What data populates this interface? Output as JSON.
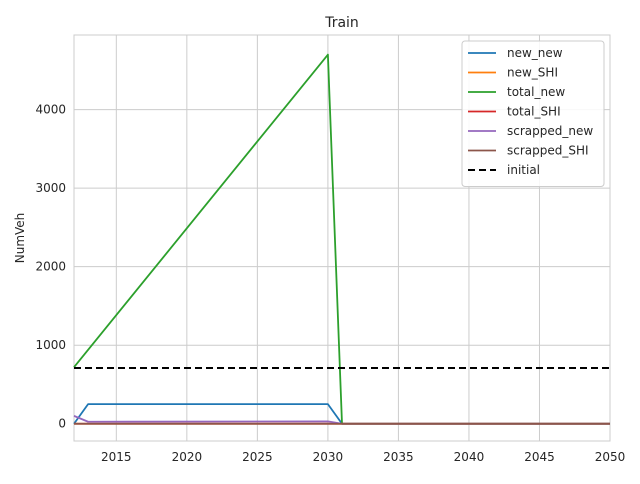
{
  "chart_data": {
    "type": "line",
    "title": "Train",
    "xlabel": "",
    "ylabel": "NumVeh",
    "xlim": [
      2012,
      2050
    ],
    "ylim": [
      -220,
      4950
    ],
    "xticks": [
      2015,
      2020,
      2025,
      2030,
      2035,
      2040,
      2045,
      2050
    ],
    "yticks": [
      0,
      1000,
      2000,
      3000,
      4000
    ],
    "grid": true,
    "legend_position": "top-right",
    "series": [
      {
        "name": "new_new",
        "color": "#1f77b4",
        "style": "solid",
        "points": [
          [
            2012,
            0
          ],
          [
            2013,
            250
          ],
          [
            2030,
            250
          ],
          [
            2031,
            0
          ],
          [
            2050,
            0
          ]
        ]
      },
      {
        "name": "new_SHI",
        "color": "#ff7f0e",
        "style": "solid",
        "points": [
          [
            2012,
            0
          ],
          [
            2050,
            0
          ]
        ]
      },
      {
        "name": "total_new",
        "color": "#2ca02c",
        "style": "solid",
        "points": [
          [
            2012,
            720
          ],
          [
            2030,
            4700
          ],
          [
            2031,
            0
          ],
          [
            2050,
            0
          ]
        ]
      },
      {
        "name": "total_SHI",
        "color": "#d62728",
        "style": "solid",
        "points": [
          [
            2012,
            0
          ],
          [
            2050,
            0
          ]
        ]
      },
      {
        "name": "scrapped_new",
        "color": "#9467bd",
        "style": "solid",
        "points": [
          [
            2012,
            100
          ],
          [
            2013,
            25
          ],
          [
            2030,
            30
          ],
          [
            2031,
            0
          ],
          [
            2050,
            0
          ]
        ]
      },
      {
        "name": "scrapped_SHI",
        "color": "#8c564b",
        "style": "solid",
        "points": [
          [
            2012,
            0
          ],
          [
            2050,
            0
          ]
        ]
      },
      {
        "name": "initial",
        "color": "#000000",
        "style": "dashed",
        "points": [
          [
            2012,
            710
          ],
          [
            2050,
            710
          ]
        ]
      }
    ]
  }
}
